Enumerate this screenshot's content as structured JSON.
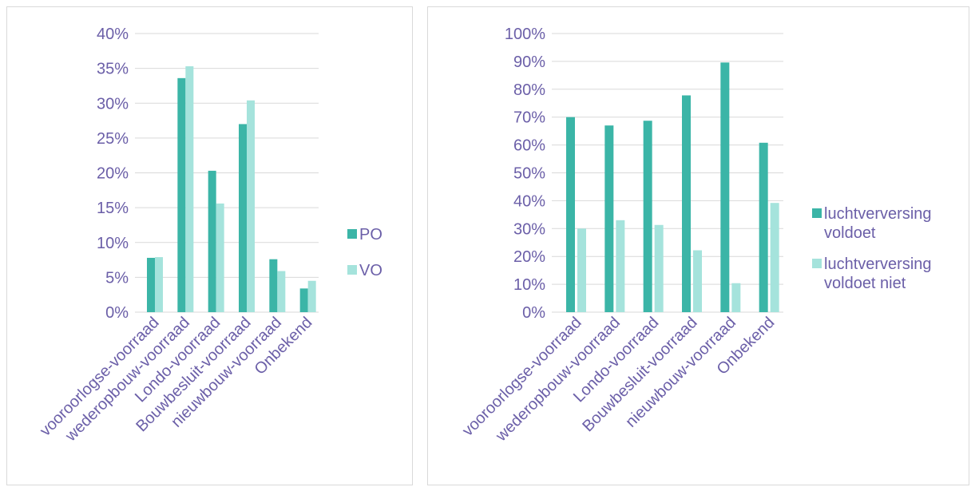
{
  "chart_data": [
    {
      "type": "bar",
      "categories": [
        "vooroorlogse-voorraad",
        "wederopbouw-voorraad",
        "Londo-voorraad",
        "Bouwbesluit-voorraad",
        "nieuwbouw-voorraad",
        "Onbekend"
      ],
      "series": [
        {
          "name": "PO",
          "values": [
            7.8,
            33.6,
            20.3,
            27.0,
            7.6,
            3.4
          ],
          "color": "#3bb5a7"
        },
        {
          "name": "VO",
          "values": [
            7.9,
            35.3,
            15.6,
            30.4,
            5.9,
            4.5
          ],
          "color": "#a5e3dc"
        }
      ],
      "ylim": [
        0,
        40
      ],
      "yticks": [
        0,
        5,
        10,
        15,
        20,
        25,
        30,
        35,
        40
      ],
      "ytick_labels": [
        "0%",
        "5%",
        "10%",
        "15%",
        "20%",
        "25%",
        "30%",
        "35%",
        "40%"
      ],
      "grid": true,
      "legend": "right"
    },
    {
      "type": "bar",
      "categories": [
        "vooroorlogse-voorraad",
        "wederopbouw-voorraad",
        "Londo-voorraad",
        "Bouwbesluit-voorraad",
        "nieuwbouw-voorraad",
        "Onbekend"
      ],
      "series": [
        {
          "name": "luchtverversing voldoet",
          "legend_lines": [
            "luchtverversing",
            "voldoet"
          ],
          "values": [
            70,
            67,
            68.7,
            77.8,
            89.6,
            60.8
          ],
          "color": "#3bb5a7"
        },
        {
          "name": "luchtverversing voldoet niet",
          "legend_lines": [
            "luchtverversing",
            "voldoet niet"
          ],
          "values": [
            30,
            33,
            31.3,
            22.2,
            10.4,
            39.2
          ],
          "color": "#a5e3dc"
        }
      ],
      "ylim": [
        0,
        100
      ],
      "yticks": [
        0,
        10,
        20,
        30,
        40,
        50,
        60,
        70,
        80,
        90,
        100
      ],
      "ytick_labels": [
        "0%",
        "10%",
        "20%",
        "30%",
        "40%",
        "50%",
        "60%",
        "70%",
        "80%",
        "90%",
        "100%"
      ],
      "grid": true,
      "legend": "right"
    }
  ]
}
